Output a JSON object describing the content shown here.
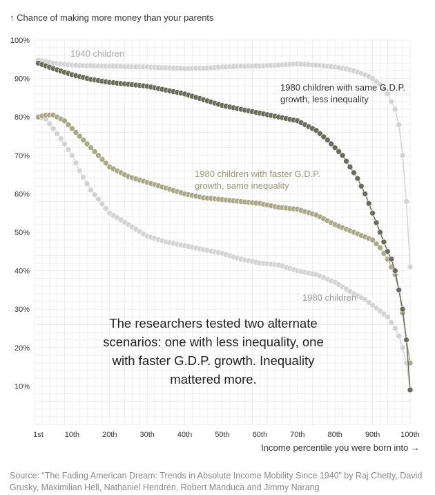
{
  "y_axis_label": "↑ Chance of making more money than your parents",
  "x_axis_label": "Income percentile you were born into →",
  "source": "Source: “The Fading American Dream: Trends in Absolute Income Mobility Since 1940” by Raj Chetty, David Grusky, Maximilian Hell, Nathaniel Hendren, Robert Manduca and Jimmy Narang",
  "annotation": [
    "The researchers tested two alternate",
    "scenarios: one with less inequality, one",
    "with faster G.D.P. growth. Inequality",
    "mattered more."
  ],
  "colors": {
    "1940 children": "#d3d3d3",
    "1980 children": "#d3d3d3",
    "1980 children with faster G.D.P. growth, same inequality": "#aaa886",
    "1980 children with same G.D.P. growth, less inequality": "#6b6b5c",
    "grid": "#ededed"
  },
  "chart_data": {
    "type": "scatter",
    "x_ticks": [
      1,
      10,
      20,
      30,
      40,
      50,
      60,
      70,
      80,
      90,
      100
    ],
    "x_tick_labels": [
      "1st",
      "10th",
      "20th",
      "30th",
      "40th",
      "50th",
      "60th",
      "70th",
      "80th",
      "90th",
      "100th"
    ],
    "y_ticks": [
      10,
      20,
      30,
      40,
      50,
      60,
      70,
      80,
      90,
      100
    ],
    "y_tick_labels": [
      "10%",
      "20%",
      "30%",
      "40%",
      "50%",
      "60%",
      "70%",
      "80%",
      "90%",
      "100%"
    ],
    "xlim": [
      0,
      100
    ],
    "ylim": [
      0,
      100
    ],
    "grid": true,
    "series": [
      {
        "name": "1940 children",
        "label_lines": [
          "1940 children"
        ],
        "x": [
          1,
          5,
          10,
          15,
          20,
          25,
          30,
          35,
          40,
          45,
          50,
          55,
          60,
          65,
          70,
          75,
          80,
          83,
          85,
          88,
          90,
          92,
          94,
          96,
          97,
          98,
          99,
          100
        ],
        "y": [
          94.8,
          94,
          93.5,
          93.3,
          93.2,
          93.1,
          93,
          92.8,
          92.6,
          92.7,
          93,
          93.2,
          93.3,
          93.5,
          93.8,
          93.5,
          93,
          92.5,
          92,
          91,
          90,
          88.5,
          86,
          82,
          78,
          70,
          58,
          41
        ]
      },
      {
        "name": "1980 children with same G.D.P. growth, less inequality",
        "label_lines": [
          "1980 children with same G.D.P.",
          "growth, less inequality"
        ],
        "x": [
          1,
          5,
          10,
          15,
          20,
          25,
          30,
          35,
          40,
          45,
          50,
          55,
          60,
          65,
          70,
          75,
          78,
          80,
          82,
          84,
          86,
          88,
          90,
          92,
          94,
          95,
          96,
          97,
          98,
          99,
          100
        ],
        "y": [
          94,
          92.6,
          91,
          89.8,
          89,
          88.5,
          88,
          87,
          86,
          84.5,
          83,
          82,
          81,
          80,
          79,
          76.5,
          74,
          72,
          70,
          67,
          64,
          60,
          55,
          50,
          45,
          43,
          40,
          35,
          30,
          22,
          9
        ]
      },
      {
        "name": "1980 children with faster G.D.P. growth, same inequality",
        "label_lines": [
          "1980 children with faster G.D.P.",
          "growth, same inequality"
        ],
        "x": [
          1,
          3,
          5,
          8,
          10,
          15,
          20,
          25,
          30,
          35,
          40,
          45,
          50,
          55,
          60,
          65,
          70,
          75,
          80,
          85,
          90,
          92,
          94,
          96,
          97,
          98,
          99,
          100
        ],
        "y": [
          80,
          80.5,
          80.5,
          79,
          77,
          72,
          67,
          64.5,
          63,
          61.5,
          60,
          59,
          58.5,
          58,
          57.5,
          56.5,
          56,
          54.5,
          52,
          50,
          48,
          46,
          43,
          39,
          35,
          29,
          22,
          16
        ]
      },
      {
        "name": "1980 children",
        "label_lines": [
          "1980 children"
        ],
        "x": [
          1,
          3,
          5,
          8,
          10,
          12,
          15,
          20,
          25,
          30,
          35,
          40,
          45,
          50,
          55,
          60,
          65,
          70,
          75,
          80,
          85,
          88,
          90,
          92,
          94,
          96,
          97,
          98,
          99,
          100
        ],
        "y": [
          80,
          79.5,
          77,
          73,
          70,
          66,
          61,
          55,
          52,
          49,
          47.5,
          46.5,
          45.5,
          44.5,
          43,
          42,
          41.5,
          40,
          39,
          37,
          34,
          32.5,
          31,
          29.5,
          28,
          25,
          23,
          20,
          16,
          9
        ]
      }
    ]
  }
}
